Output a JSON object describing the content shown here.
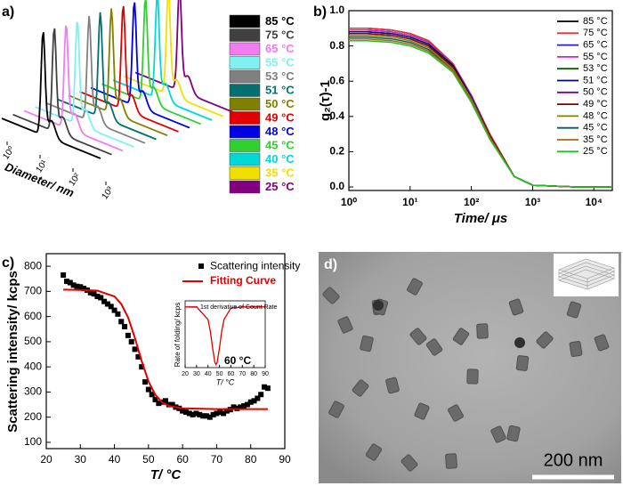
{
  "chart_data": [
    {
      "type": "waterfall",
      "label": "a)",
      "xlabel": "Diameter/ nm",
      "log_x": true,
      "xlim": [
        1,
        1000
      ],
      "xticks": [
        {
          "value": 1,
          "label": "10⁰"
        },
        {
          "value": 10,
          "label": "10¹"
        },
        {
          "value": 100,
          "label": "10²"
        },
        {
          "value": 1000,
          "label": "10³"
        }
      ],
      "series": [
        {
          "name": "85 °C",
          "color": "#000000",
          "peak": 18
        },
        {
          "name": "75 °C",
          "color": "#404040",
          "peak": 18
        },
        {
          "name": "65 °C",
          "color": "#f07cf0",
          "peak": 19
        },
        {
          "name": "55 °C",
          "color": "#80f0f0",
          "peak": 19
        },
        {
          "name": "53 °C",
          "color": "#808080",
          "peak": 20
        },
        {
          "name": "51 °C",
          "color": "#007070",
          "peak": 20
        },
        {
          "name": "50 °C",
          "color": "#808000",
          "peak": 20
        },
        {
          "name": "49 °C",
          "color": "#e00000",
          "peak": 21
        },
        {
          "name": "48 °C",
          "color": "#0000e0",
          "peak": 21
        },
        {
          "name": "45 °C",
          "color": "#30d030",
          "peak": 21
        },
        {
          "name": "40 °C",
          "color": "#00d8d8",
          "peak": 22
        },
        {
          "name": "35 °C",
          "color": "#f0e000",
          "peak": 22
        },
        {
          "name": "25 °C",
          "color": "#800080",
          "peak": 22
        }
      ]
    },
    {
      "type": "line",
      "label": "b)",
      "xlabel": "Time/ μs",
      "ylabel": "g₂(τ)-1",
      "log_x": true,
      "xlim": [
        1,
        20000
      ],
      "ylim": [
        -0.02,
        1.0
      ],
      "xticks": [
        {
          "value": 1,
          "label": "10⁰"
        },
        {
          "value": 10,
          "label": "10¹"
        },
        {
          "value": 100,
          "label": "10²"
        },
        {
          "value": 1000,
          "label": "10³"
        },
        {
          "value": 10000,
          "label": "10⁴"
        }
      ],
      "yticks": [
        {
          "value": 0,
          "label": "0.0"
        },
        {
          "value": 0.2,
          "label": "0.2"
        },
        {
          "value": 0.4,
          "label": "0.4"
        },
        {
          "value": 0.6,
          "label": "0.6"
        },
        {
          "value": 0.8,
          "label": "0.8"
        },
        {
          "value": 1,
          "label": "1.0"
        }
      ],
      "x": [
        1,
        2,
        5,
        10,
        20,
        50,
        100,
        200,
        500,
        1000,
        5000,
        20000
      ],
      "series": [
        {
          "name": "85 °C",
          "color": "#000000",
          "values": [
            0.9,
            0.9,
            0.89,
            0.87,
            0.83,
            0.7,
            0.52,
            0.3,
            0.06,
            0.01,
            0,
            0
          ]
        },
        {
          "name": "75 °C",
          "color": "#e03030",
          "values": [
            0.9,
            0.9,
            0.89,
            0.87,
            0.83,
            0.7,
            0.52,
            0.3,
            0.06,
            0.01,
            0,
            0
          ]
        },
        {
          "name": "65 °C",
          "color": "#2020d0",
          "values": [
            0.89,
            0.89,
            0.88,
            0.86,
            0.82,
            0.69,
            0.52,
            0.29,
            0.06,
            0.01,
            0,
            0
          ]
        },
        {
          "name": "55 °C",
          "color": "#d020d0",
          "values": [
            0.89,
            0.89,
            0.88,
            0.86,
            0.82,
            0.69,
            0.52,
            0.29,
            0.06,
            0.01,
            0,
            0
          ]
        },
        {
          "name": "53 °C",
          "color": "#006000",
          "values": [
            0.88,
            0.88,
            0.87,
            0.85,
            0.81,
            0.69,
            0.51,
            0.29,
            0.06,
            0.01,
            0,
            0
          ]
        },
        {
          "name": "51 °C",
          "color": "#000080",
          "values": [
            0.88,
            0.88,
            0.87,
            0.85,
            0.81,
            0.69,
            0.51,
            0.29,
            0.06,
            0.01,
            0,
            0
          ]
        },
        {
          "name": "50 °C",
          "color": "#800080",
          "values": [
            0.87,
            0.87,
            0.86,
            0.84,
            0.8,
            0.68,
            0.5,
            0.29,
            0.06,
            0.01,
            0,
            0
          ]
        },
        {
          "name": "49 °C",
          "color": "#800000",
          "values": [
            0.87,
            0.87,
            0.86,
            0.84,
            0.8,
            0.68,
            0.5,
            0.29,
            0.06,
            0.01,
            0,
            0
          ]
        },
        {
          "name": "48 °C",
          "color": "#808000",
          "values": [
            0.86,
            0.86,
            0.85,
            0.83,
            0.79,
            0.67,
            0.5,
            0.28,
            0.06,
            0.01,
            0,
            0
          ]
        },
        {
          "name": "45 °C",
          "color": "#006060",
          "values": [
            0.85,
            0.85,
            0.84,
            0.82,
            0.78,
            0.66,
            0.49,
            0.28,
            0.06,
            0.01,
            0,
            0
          ]
        },
        {
          "name": "35 °C",
          "color": "#b06010",
          "values": [
            0.84,
            0.84,
            0.83,
            0.81,
            0.77,
            0.66,
            0.49,
            0.28,
            0.06,
            0.01,
            0,
            0
          ]
        },
        {
          "name": "25 °C",
          "color": "#20c020",
          "values": [
            0.83,
            0.83,
            0.82,
            0.8,
            0.76,
            0.65,
            0.48,
            0.27,
            0.06,
            0.01,
            0,
            0
          ]
        }
      ]
    },
    {
      "type": "scatter",
      "label": "c)",
      "xlabel": "T/ °C",
      "ylabel": "Scattering intensity/ kcps",
      "xlim": [
        20,
        90
      ],
      "ylim": [
        75,
        850
      ],
      "xticks": [
        20,
        30,
        40,
        50,
        60,
        70,
        80,
        90
      ],
      "yticks": [
        100,
        200,
        300,
        400,
        500,
        600,
        700,
        800
      ],
      "series": [
        {
          "name": "Scattering intensity",
          "color": "#000000",
          "marker": "square",
          "x": [
            25,
            26,
            27,
            28,
            29,
            30,
            31,
            32,
            33,
            34,
            35,
            36,
            37,
            38,
            39,
            40,
            41,
            42,
            43,
            44,
            45,
            46,
            47,
            48,
            49,
            50,
            51,
            52,
            53,
            54,
            55,
            56,
            57,
            58,
            59,
            60,
            61,
            62,
            63,
            64,
            65,
            66,
            67,
            68,
            69,
            70,
            71,
            72,
            73,
            74,
            75,
            76,
            77,
            78,
            79,
            80,
            81,
            82,
            83,
            84,
            85
          ],
          "values": [
            765,
            740,
            735,
            725,
            720,
            718,
            712,
            705,
            695,
            690,
            680,
            675,
            660,
            650,
            640,
            625,
            610,
            580,
            560,
            525,
            500,
            470,
            440,
            400,
            340,
            310,
            290,
            270,
            255,
            260,
            265,
            250,
            250,
            240,
            235,
            225,
            220,
            215,
            210,
            215,
            210,
            205,
            205,
            200,
            210,
            215,
            220,
            215,
            225,
            230,
            240,
            235,
            240,
            245,
            250,
            260,
            265,
            275,
            290,
            320,
            315
          ]
        },
        {
          "name": "Fitting Curve",
          "color": "#e00000",
          "marker": "line",
          "x": [
            25,
            30,
            35,
            40,
            42,
            44,
            46,
            47,
            48,
            50,
            52,
            54,
            56,
            60,
            70,
            85
          ],
          "values": [
            707,
            706,
            703,
            680,
            650,
            597,
            516,
            469,
            423,
            342,
            289,
            259,
            245,
            235,
            232,
            232
          ]
        }
      ],
      "inset": {
        "type": "line",
        "xlabel": "T/ °C",
        "ylabel": "Rate of folding/ kcps",
        "xlim": [
          20,
          90
        ],
        "ylim": [
          -50,
          5
        ],
        "xticks": [
          20,
          30,
          40,
          50,
          60,
          70,
          80,
          90
        ],
        "annotation": "60 °C",
        "series": [
          {
            "name": "1st derivative of Count Rate",
            "color": "#e00000",
            "x": [
              20,
              30,
              40,
              42,
              44,
              46,
              47,
              48,
              50,
              52,
              54,
              60,
              70,
              90
            ],
            "values": [
              0,
              0,
              -10.3,
              -19.9,
              -33.8,
              -45.6,
              -47.5,
              -45.6,
              -33.8,
              -19.9,
              -10.3,
              -1.0,
              0,
              0
            ]
          }
        ]
      }
    }
  ],
  "image": {
    "label": "d)",
    "scale_bar": "200 nm"
  }
}
